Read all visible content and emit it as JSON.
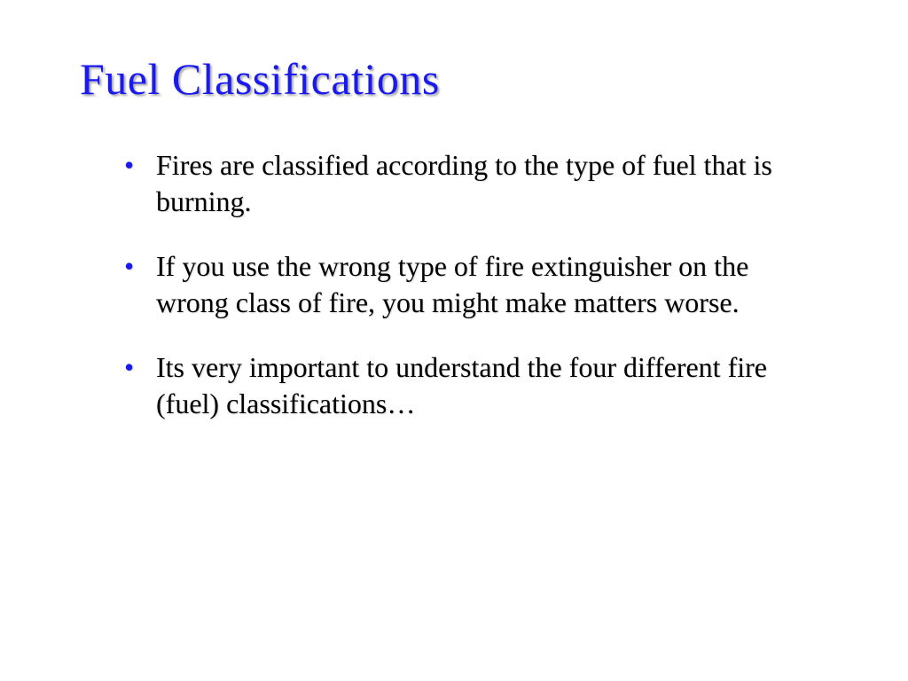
{
  "slide": {
    "title": "Fuel Classifications",
    "title_color": "#1a1aee",
    "title_fontsize": 50,
    "bullet_color": "#1a1aee",
    "body_color": "#000000",
    "body_fontsize": 32,
    "background_color": "#ffffff",
    "bullets": [
      "Fires are classified according to the type of fuel that is burning.",
      "If you use the wrong type of fire extinguisher on the wrong class of fire, you might make matters worse.",
      "Its very important to understand the four different fire (fuel) classifications…"
    ]
  }
}
